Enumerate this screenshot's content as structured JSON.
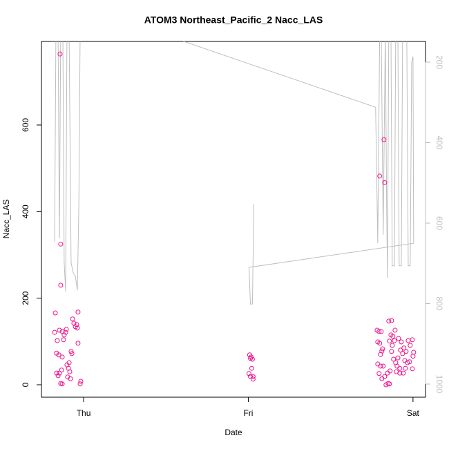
{
  "chart_data": {
    "type": "scatter",
    "title": "ATOM3 Northeast_Pacific_2 Nacc_LAS",
    "x_label": "Date",
    "y_label": "Nacc_LAS",
    "color": "#ee1289",
    "x": [
      -0.143,
      -0.139,
      -0.139,
      -0.172,
      -0.176,
      -0.16,
      -0.147,
      -0.13,
      -0.118,
      -0.105,
      -0.122,
      -0.164,
      -0.151,
      -0.13,
      -0.164,
      -0.155,
      -0.134,
      -0.139,
      -0.13,
      -0.101,
      -0.092,
      -0.084,
      -0.097,
      -0.08,
      -0.076,
      -0.071,
      -0.067,
      -0.059,
      -0.05,
      -0.042,
      -0.038,
      -0.034,
      -0.034,
      -0.021,
      -0.017,
      -0.109,
      -0.147,
      -0.088,
      1.008,
      1.017,
      1.025,
      1.021,
      1.004,
      1.013,
      1.029,
      1.029,
      1.013,
      1.798,
      1.824,
      1.828,
      1.782,
      1.794,
      1.807,
      1.786,
      1.798,
      1.811,
      1.803,
      1.815,
      1.786,
      1.803,
      1.819,
      1.794,
      1.811,
      1.828,
      1.836,
      1.849,
      1.857,
      1.845,
      1.861,
      1.853,
      1.87,
      1.866,
      1.878,
      1.891,
      1.857,
      1.874,
      1.887,
      1.87,
      1.882,
      1.895,
      1.908,
      1.903,
      1.899,
      1.92,
      1.912,
      1.929,
      1.924,
      1.937,
      1.945,
      1.958,
      1.95,
      1.966,
      1.979,
      1.971,
      1.983,
      1.996,
      2.004,
      2.0,
      1.996,
      1.941,
      1.954,
      1.92
    ],
    "values": [
      764,
      325,
      230,
      166,
      121,
      102,
      126,
      123,
      115,
      128,
      104,
      73,
      69,
      64,
      27,
      21,
      34,
      3,
      2,
      46,
      38,
      30,
      18,
      14,
      77,
      72,
      152,
      142,
      134,
      139,
      131,
      168,
      96,
      2,
      8,
      121,
      27,
      51,
      69,
      64,
      59,
      38,
      26,
      19,
      13,
      19,
      61,
      482,
      566,
      467,
      126,
      123,
      123,
      99,
      96,
      78,
      70,
      83,
      48,
      43,
      43,
      26,
      14,
      19,
      0,
      3,
      2,
      27,
      32,
      147,
      148,
      115,
      112,
      126,
      101,
      91,
      102,
      77,
      59,
      51,
      62,
      43,
      30,
      38,
      107,
      99,
      80,
      72,
      85,
      77,
      56,
      51,
      53,
      102,
      91,
      104,
      75,
      66,
      37,
      27,
      38,
      27
    ],
    "xlim": [
      -0.256,
      2.076
    ],
    "xticks": [
      {
        "value": 0,
        "label": "Thu"
      },
      {
        "value": 1,
        "label": "Fri"
      },
      {
        "value": 2,
        "label": "Sat"
      }
    ],
    "ylim": [
      -28.7,
      793
    ],
    "yticks": [
      0,
      200,
      400,
      600
    ],
    "y2lim": [
      1032.6,
      148.5
    ],
    "y2ticks": [
      200,
      400,
      600,
      800,
      1000
    ],
    "y2_series": {
      "axis": "y2",
      "color": "#bebebe",
      "x": [
        -0.176,
        -0.168,
        -0.155,
        -0.147,
        -0.139,
        -0.126,
        -0.118,
        -0.109,
        -0.101,
        -0.088,
        -0.076,
        -0.063,
        -0.05,
        -0.038,
        -0.029,
        -0.021,
        0.584,
        1.773,
        1.786,
        1.798,
        1.807,
        1.819,
        1.832,
        1.84,
        1.845,
        1.853,
        1.866,
        1.874,
        1.887,
        1.895,
        1.908,
        1.916,
        1.929,
        1.937,
        1.962,
        1.971,
        1.983,
        1.992,
        2.0,
        2.004,
        1.004,
        1.013,
        1.025,
        1.034
      ],
      "values": [
        646,
        120,
        120,
        638,
        120,
        120,
        698,
        770,
        120,
        120,
        698,
        724,
        732,
        767,
        560,
        120,
        145,
        312,
        650,
        120,
        120,
        629,
        120,
        560,
        736,
        120,
        120,
        706,
        706,
        120,
        120,
        706,
        706,
        120,
        120,
        706,
        706,
        200,
        186,
        650,
        710,
        801,
        801,
        552
      ]
    }
  }
}
